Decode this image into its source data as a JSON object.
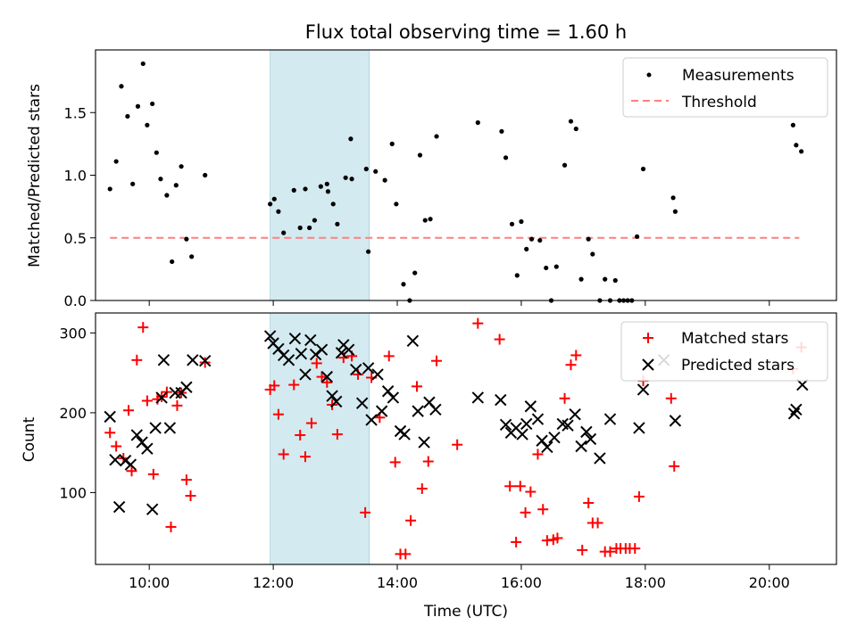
{
  "figure_title": "Flux total observing time = 1.60 h",
  "xlabel": "Time (UTC)",
  "x_ticks": [
    "10:00",
    "12:00",
    "14:00",
    "16:00",
    "18:00",
    "20:00"
  ],
  "colors": {
    "measurement": "#000000",
    "threshold": "#ff7f7f",
    "matched": "#ff0000",
    "predicted": "#000000",
    "highlight": "#d3eaf0"
  },
  "chart_data": [
    {
      "type": "scatter",
      "ylabel": "Matched/Predicted stars",
      "y_ticks": [
        "0.0",
        "0.5",
        "1.0",
        "1.5"
      ],
      "xlim": [
        "09:08",
        "21:05"
      ],
      "ylim": [
        0,
        2.0
      ],
      "highlight_span": [
        "11:57",
        "13:33"
      ],
      "legend_placement": "top-right",
      "legend": [
        {
          "label": "Measurements",
          "marker": "dot"
        },
        {
          "label": "Threshold",
          "marker": "dashed-line"
        }
      ],
      "threshold": {
        "name": "Threshold",
        "value": 0.5,
        "x_start": "09:22",
        "x_end": "20:29"
      },
      "series": [
        {
          "name": "Measurements",
          "points": [
            [
              "09:22",
              0.89
            ],
            [
              "09:28",
              1.11
            ],
            [
              "09:33",
              1.71
            ],
            [
              "09:39",
              1.47
            ],
            [
              "09:44",
              0.93
            ],
            [
              "09:49",
              1.55
            ],
            [
              "09:54",
              1.89
            ],
            [
              "09:58",
              1.4
            ],
            [
              "10:03",
              1.57
            ],
            [
              "10:07",
              1.18
            ],
            [
              "10:11",
              0.97
            ],
            [
              "10:17",
              0.84
            ],
            [
              "10:22",
              0.31
            ],
            [
              "10:26",
              0.92
            ],
            [
              "10:31",
              1.07
            ],
            [
              "10:36",
              0.49
            ],
            [
              "10:41",
              0.35
            ],
            [
              "10:54",
              1.0
            ],
            [
              "11:57",
              0.77
            ],
            [
              "12:01",
              0.81
            ],
            [
              "12:05",
              0.71
            ],
            [
              "12:10",
              0.54
            ],
            [
              "12:20",
              0.88
            ],
            [
              "12:26",
              0.58
            ],
            [
              "12:31",
              0.89
            ],
            [
              "12:35",
              0.58
            ],
            [
              "12:40",
              0.64
            ],
            [
              "12:46",
              0.91
            ],
            [
              "12:52",
              0.93
            ],
            [
              "12:53",
              0.87
            ],
            [
              "12:58",
              0.77
            ],
            [
              "13:02",
              0.61
            ],
            [
              "13:10",
              0.98
            ],
            [
              "13:15",
              1.29
            ],
            [
              "13:16",
              0.97
            ],
            [
              "13:30",
              1.05
            ],
            [
              "13:32",
              0.39
            ],
            [
              "13:39",
              1.03
            ],
            [
              "13:48",
              0.96
            ],
            [
              "13:55",
              1.25
            ],
            [
              "13:59",
              0.77
            ],
            [
              "14:06",
              0.13
            ],
            [
              "14:12",
              0.0
            ],
            [
              "14:17",
              0.22
            ],
            [
              "14:22",
              1.16
            ],
            [
              "14:27",
              0.64
            ],
            [
              "14:32",
              0.65
            ],
            [
              "14:38",
              1.31
            ],
            [
              "15:18",
              1.42
            ],
            [
              "15:41",
              1.35
            ],
            [
              "15:45",
              1.14
            ],
            [
              "15:51",
              0.61
            ],
            [
              "15:56",
              0.2
            ],
            [
              "16:00",
              0.63
            ],
            [
              "16:05",
              0.41
            ],
            [
              "16:10",
              0.49
            ],
            [
              "16:18",
              0.48
            ],
            [
              "16:24",
              0.26
            ],
            [
              "16:29",
              0.0
            ],
            [
              "16:34",
              0.27
            ],
            [
              "16:42",
              1.08
            ],
            [
              "16:48",
              1.43
            ],
            [
              "16:53",
              1.37
            ],
            [
              "16:58",
              0.17
            ],
            [
              "17:05",
              0.49
            ],
            [
              "17:09",
              0.37
            ],
            [
              "17:16",
              0.0
            ],
            [
              "17:21",
              0.17
            ],
            [
              "17:26",
              0.0
            ],
            [
              "17:31",
              0.16
            ],
            [
              "17:35",
              0.0
            ],
            [
              "17:39",
              0.0
            ],
            [
              "17:43",
              0.0
            ],
            [
              "17:47",
              0.0
            ],
            [
              "17:52",
              0.51
            ],
            [
              "17:58",
              1.05
            ],
            [
              "18:27",
              0.82
            ],
            [
              "18:29",
              0.71
            ],
            [
              "20:23",
              1.4
            ],
            [
              "20:26",
              1.24
            ],
            [
              "20:31",
              1.19
            ]
          ]
        }
      ]
    },
    {
      "type": "scatter",
      "ylabel": "Count",
      "y_ticks": [
        "100",
        "200",
        "300"
      ],
      "xlim": [
        "09:08",
        "21:05"
      ],
      "ylim": [
        10,
        325
      ],
      "highlight_span": [
        "11:57",
        "13:33"
      ],
      "legend_placement": "top-right",
      "legend": [
        {
          "label": "Matched stars",
          "marker": "plus"
        },
        {
          "label": "Predicted stars",
          "marker": "x"
        }
      ],
      "series": [
        {
          "name": "Matched stars",
          "marker": "plus",
          "points": [
            [
              "09:22",
              175
            ],
            [
              "09:28",
              158
            ],
            [
              "09:35",
              143
            ],
            [
              "09:40",
              203
            ],
            [
              "09:43",
              127
            ],
            [
              "09:48",
              266
            ],
            [
              "09:54",
              307
            ],
            [
              "09:58",
              215
            ],
            [
              "10:04",
              123
            ],
            [
              "10:08",
              217
            ],
            [
              "10:12",
              220
            ],
            [
              "10:17",
              226
            ],
            [
              "10:21",
              57
            ],
            [
              "10:27",
              209
            ],
            [
              "10:31",
              225
            ],
            [
              "10:36",
              116
            ],
            [
              "10:40",
              96
            ],
            [
              "10:54",
              263
            ],
            [
              "11:57",
              229
            ],
            [
              "12:01",
              234
            ],
            [
              "12:05",
              198
            ],
            [
              "12:10",
              148
            ],
            [
              "12:20",
              235
            ],
            [
              "12:26",
              172
            ],
            [
              "12:31",
              145
            ],
            [
              "12:37",
              187
            ],
            [
              "12:42",
              262
            ],
            [
              "12:47",
              245
            ],
            [
              "12:52",
              238
            ],
            [
              "12:57",
              210
            ],
            [
              "13:02",
              173
            ],
            [
              "13:08",
              269
            ],
            [
              "13:16",
              271
            ],
            [
              "13:22",
              248
            ],
            [
              "13:29",
              75
            ],
            [
              "13:35",
              244
            ],
            [
              "13:43",
              194
            ],
            [
              "13:52",
              271
            ],
            [
              "13:58",
              138
            ],
            [
              "14:03",
              23
            ],
            [
              "14:08",
              23
            ],
            [
              "14:13",
              65
            ],
            [
              "14:19",
              233
            ],
            [
              "14:24",
              105
            ],
            [
              "14:30",
              139
            ],
            [
              "14:38",
              265
            ],
            [
              "14:58",
              160
            ],
            [
              "15:18",
              312
            ],
            [
              "15:39",
              292
            ],
            [
              "15:49",
              108
            ],
            [
              "15:55",
              38
            ],
            [
              "15:59",
              108
            ],
            [
              "16:04",
              75
            ],
            [
              "16:09",
              101
            ],
            [
              "16:16",
              148
            ],
            [
              "16:21",
              79
            ],
            [
              "16:25",
              40
            ],
            [
              "16:31",
              41
            ],
            [
              "16:35",
              43
            ],
            [
              "16:42",
              218
            ],
            [
              "16:48",
              260
            ],
            [
              "16:53",
              272
            ],
            [
              "16:59",
              28
            ],
            [
              "17:05",
              87
            ],
            [
              "17:09",
              62
            ],
            [
              "17:14",
              62
            ],
            [
              "17:21",
              26
            ],
            [
              "17:26",
              26
            ],
            [
              "17:32",
              30
            ],
            [
              "17:36",
              30
            ],
            [
              "17:41",
              30
            ],
            [
              "17:45",
              30
            ],
            [
              "17:50",
              30
            ],
            [
              "17:54",
              95
            ],
            [
              "17:58",
              240
            ],
            [
              "18:25",
              218
            ],
            [
              "18:28",
              133
            ],
            [
              "20:23",
              255
            ],
            [
              "20:31",
              282
            ]
          ]
        },
        {
          "name": "Predicted stars",
          "marker": "x",
          "points": [
            [
              "09:22",
              195
            ],
            [
              "09:27",
              141
            ],
            [
              "09:31",
              82
            ],
            [
              "09:37",
              140
            ],
            [
              "09:42",
              135
            ],
            [
              "09:48",
              172
            ],
            [
              "09:53",
              163
            ],
            [
              "09:58",
              155
            ],
            [
              "10:03",
              79
            ],
            [
              "10:06",
              181
            ],
            [
              "10:12",
              219
            ],
            [
              "10:14",
              266
            ],
            [
              "10:20",
              181
            ],
            [
              "10:25",
              225
            ],
            [
              "10:31",
              225
            ],
            [
              "10:36",
              232
            ],
            [
              "10:42",
              266
            ],
            [
              "10:54",
              265
            ],
            [
              "11:57",
              296
            ],
            [
              "12:00",
              287
            ],
            [
              "12:05",
              280
            ],
            [
              "12:10",
              272
            ],
            [
              "12:15",
              266
            ],
            [
              "12:21",
              293
            ],
            [
              "12:27",
              274
            ],
            [
              "12:31",
              248
            ],
            [
              "12:36",
              291
            ],
            [
              "12:41",
              273
            ],
            [
              "12:47",
              279
            ],
            [
              "12:52",
              245
            ],
            [
              "12:57",
              221
            ],
            [
              "13:01",
              214
            ],
            [
              "13:06",
              275
            ],
            [
              "13:08",
              285
            ],
            [
              "13:13",
              279
            ],
            [
              "13:20",
              254
            ],
            [
              "13:26",
              212
            ],
            [
              "13:32",
              256
            ],
            [
              "13:35",
              191
            ],
            [
              "13:41",
              248
            ],
            [
              "13:45",
              202
            ],
            [
              "13:51",
              227
            ],
            [
              "13:56",
              219
            ],
            [
              "14:03",
              177
            ],
            [
              "14:07",
              173
            ],
            [
              "14:15",
              290
            ],
            [
              "14:20",
              202
            ],
            [
              "14:26",
              163
            ],
            [
              "14:31",
              213
            ],
            [
              "14:37",
              204
            ],
            [
              "15:18",
              219
            ],
            [
              "15:40",
              216
            ],
            [
              "15:45",
              185
            ],
            [
              "15:50",
              175
            ],
            [
              "15:55",
              181
            ],
            [
              "16:01",
              173
            ],
            [
              "16:05",
              186
            ],
            [
              "16:09",
              208
            ],
            [
              "16:16",
              192
            ],
            [
              "16:20",
              165
            ],
            [
              "16:25",
              157
            ],
            [
              "16:32",
              169
            ],
            [
              "16:40",
              186
            ],
            [
              "16:45",
              184
            ],
            [
              "16:52",
              198
            ],
            [
              "16:58",
              158
            ],
            [
              "17:03",
              176
            ],
            [
              "17:07",
              167
            ],
            [
              "17:16",
              143
            ],
            [
              "17:26",
              192
            ],
            [
              "17:54",
              181
            ],
            [
              "17:58",
              229
            ],
            [
              "18:18",
              266
            ],
            [
              "18:29",
              190
            ],
            [
              "20:24",
              199
            ],
            [
              "20:26",
              204
            ],
            [
              "20:32",
              235
            ]
          ]
        }
      ]
    }
  ]
}
